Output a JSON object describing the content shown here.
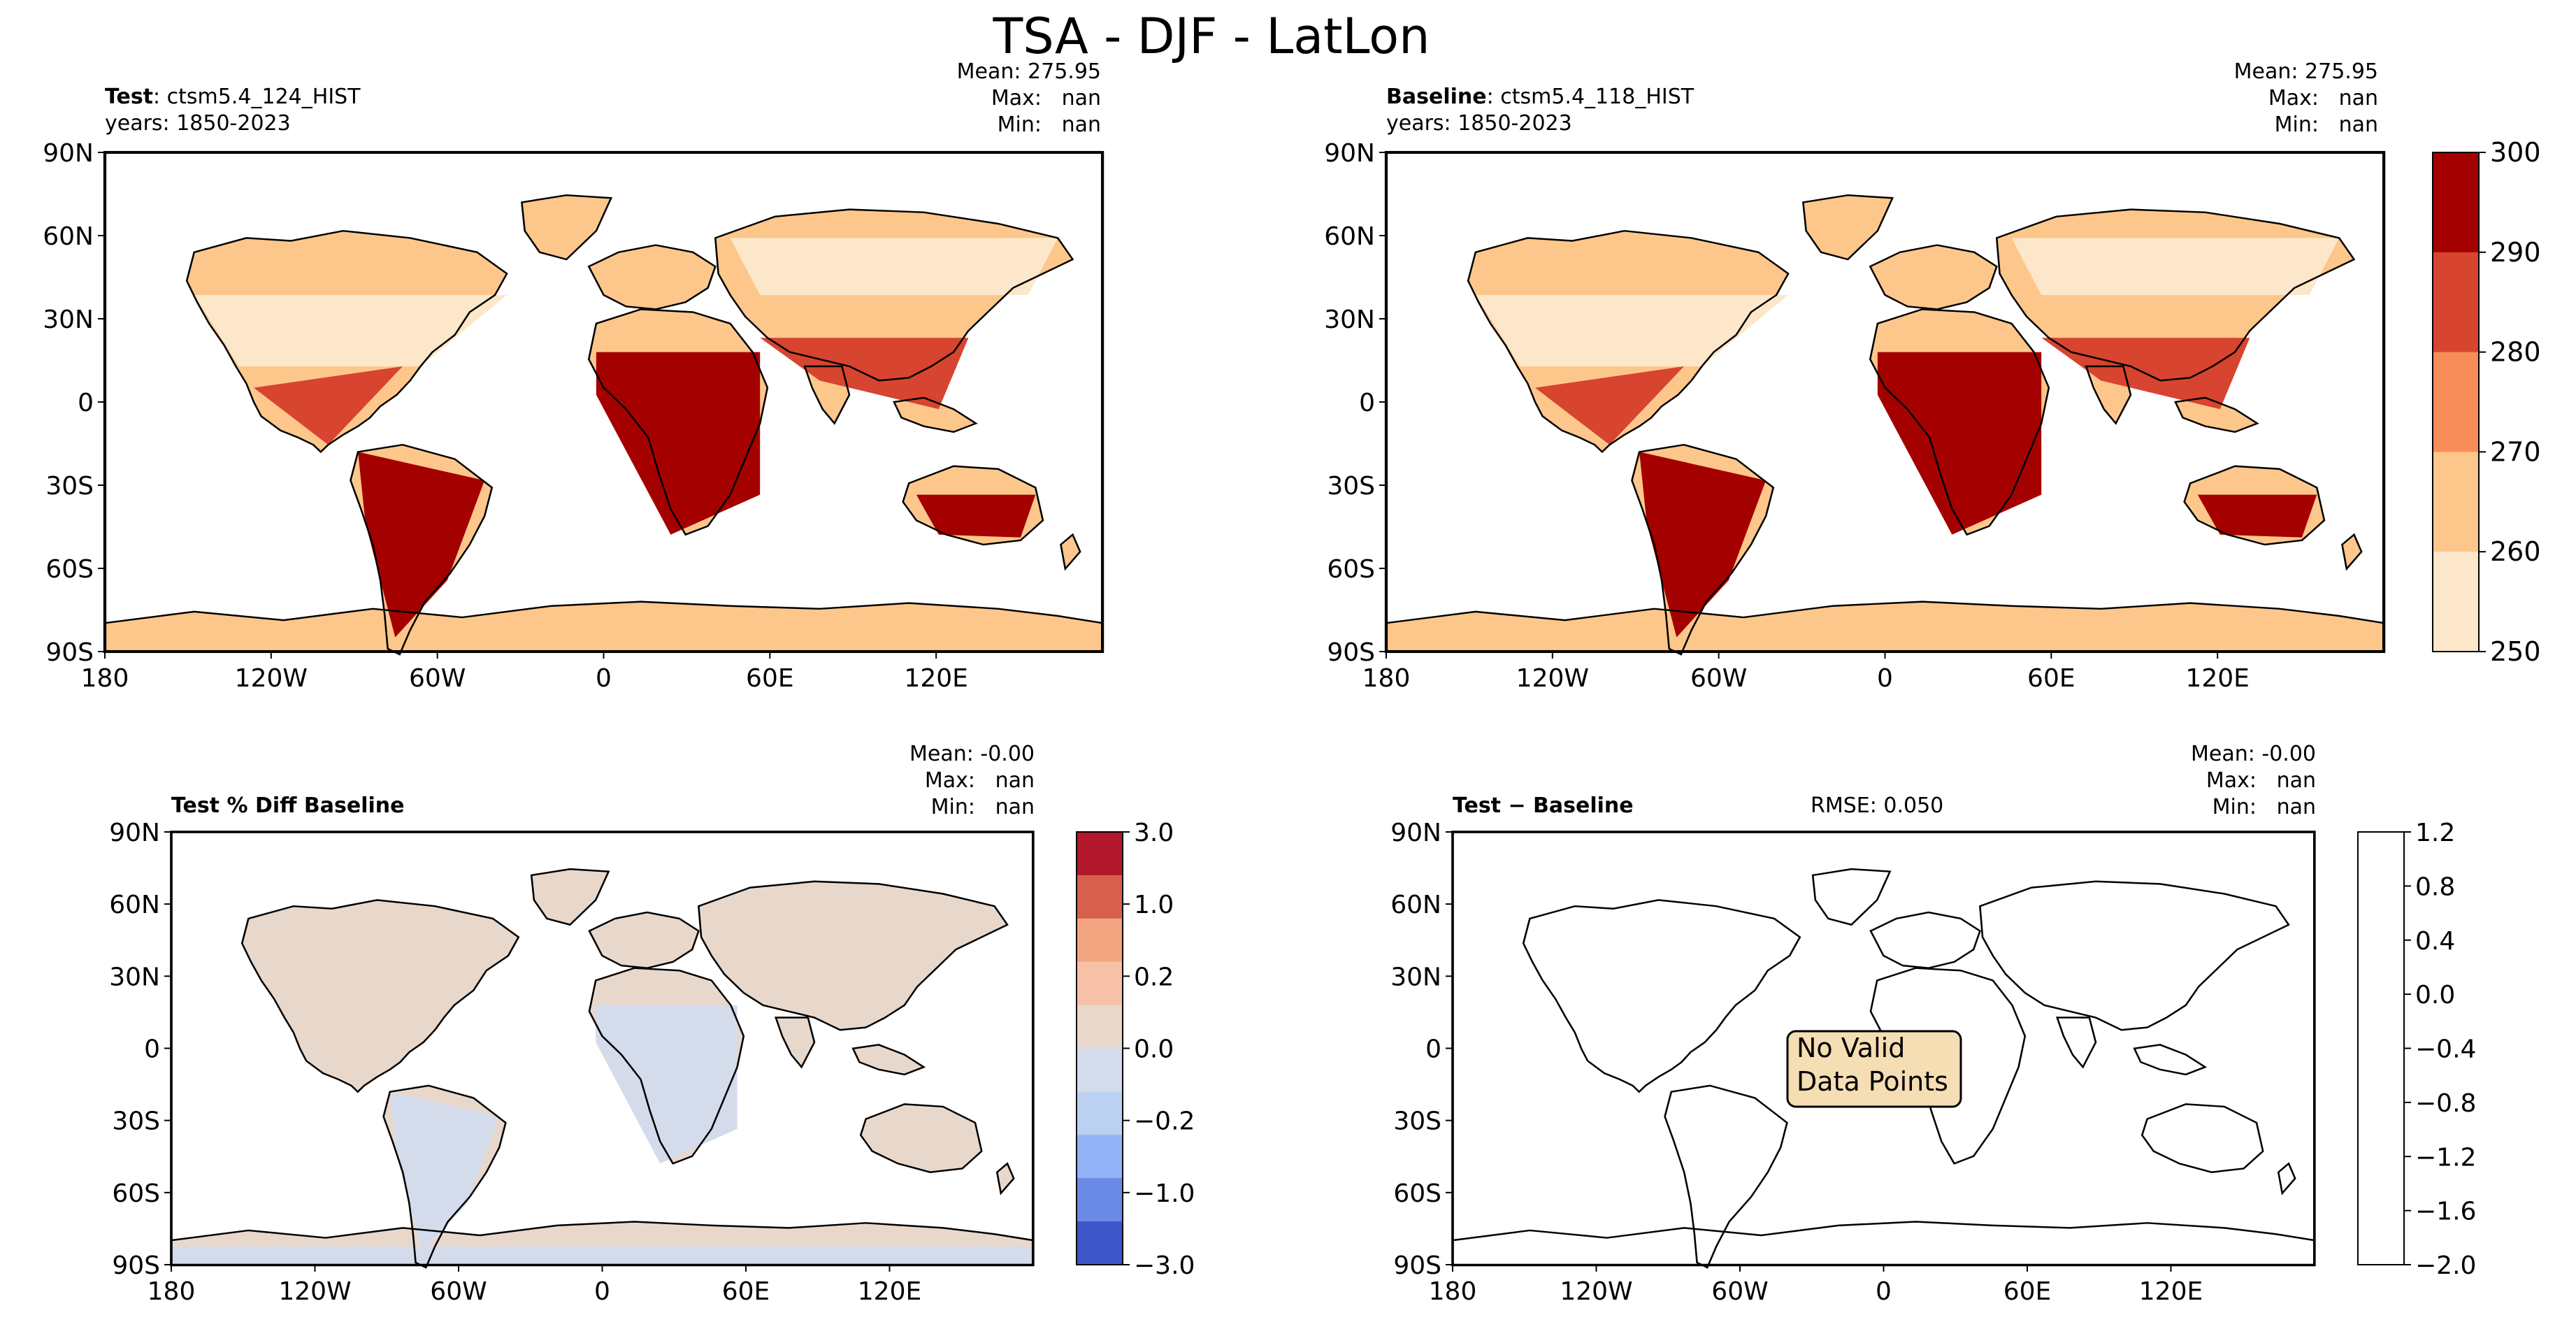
{
  "title": "TSA - DJF - LatLon",
  "chart_data": [
    {
      "type": "heatmap",
      "panel": "test",
      "label_bold": "Test",
      "label_rest": ": ctsm5.4_124_HIST",
      "years": "years: 1850-2023",
      "stats": {
        "mean": "Mean: 275.95",
        "max": "Max:   nan",
        "min": "Min:   nan"
      },
      "xticks": [
        "180",
        "120W",
        "60W",
        "0",
        "60E",
        "120E"
      ],
      "yticks": [
        "90N",
        "60N",
        "30N",
        "0",
        "30S",
        "60S",
        "90S"
      ],
      "xlim": [
        -180,
        180
      ],
      "ylim": [
        -90,
        90
      ],
      "colorbar": "shared"
    },
    {
      "type": "heatmap",
      "panel": "baseline",
      "label_bold": "Baseline",
      "label_rest": ": ctsm5.4_118_HIST",
      "years": "years: 1850-2023",
      "stats": {
        "mean": "Mean: 275.95",
        "max": "Max:   nan",
        "min": "Min:   nan"
      },
      "xticks": [
        "180",
        "120W",
        "60W",
        "0",
        "60E",
        "120E"
      ],
      "yticks": [
        "90N",
        "60N",
        "30N",
        "0",
        "30S",
        "60S",
        "90S"
      ],
      "xlim": [
        -180,
        180
      ],
      "ylim": [
        -90,
        90
      ],
      "colorbar": {
        "ticks": [
          "300",
          "290",
          "280",
          "270",
          "260",
          "250"
        ],
        "range": [
          250,
          300
        ],
        "colors": [
          "#a50000",
          "#d7442f",
          "#f98d5a",
          "#fdc78b",
          "#fde7ca"
        ]
      }
    },
    {
      "type": "heatmap",
      "panel": "pct_diff",
      "label_bold": "Test % Diff Baseline",
      "stats": {
        "mean": "Mean: -0.00",
        "max": "Max:   nan",
        "min": "Min:   nan"
      },
      "xticks": [
        "180",
        "120W",
        "60W",
        "0",
        "60E",
        "120E"
      ],
      "yticks": [
        "90N",
        "60N",
        "30N",
        "0",
        "30S",
        "60S",
        "90S"
      ],
      "xlim": [
        -180,
        180
      ],
      "ylim": [
        -90,
        90
      ],
      "colorbar": {
        "ticks": [
          "3.0",
          "1.0",
          "0.2",
          "0.0",
          "−0.2",
          "−1.0",
          "−3.0"
        ],
        "colors": [
          "#b2182b",
          "#d6604d",
          "#f4a582",
          "#f6c1a6",
          "#e8d8cc",
          "#d4dcec",
          "#bcd0f2",
          "#92b4f6",
          "#6a8ae6",
          "#3e56c8"
        ]
      }
    },
    {
      "type": "heatmap",
      "panel": "diff",
      "label_bold": "Test − Baseline",
      "rmse": "RMSE: 0.050",
      "stats": {
        "mean": "Mean: -0.00",
        "max": "Max:   nan",
        "min": "Min:   nan"
      },
      "annotation": [
        "No Valid",
        "Data Points"
      ],
      "xticks": [
        "180",
        "120W",
        "60W",
        "0",
        "60E",
        "120E"
      ],
      "yticks": [
        "90N",
        "60N",
        "30N",
        "0",
        "30S",
        "60S",
        "90S"
      ],
      "xlim": [
        -180,
        180
      ],
      "ylim": [
        -90,
        90
      ],
      "colorbar": {
        "ticks": [
          "1.2",
          "0.8",
          "0.4",
          "0.0",
          "−0.4",
          "−0.8",
          "−1.2",
          "−1.6",
          "−2.0"
        ],
        "range": [
          -2.0,
          1.2
        ],
        "colors": [
          "#ffffff"
        ]
      }
    }
  ]
}
